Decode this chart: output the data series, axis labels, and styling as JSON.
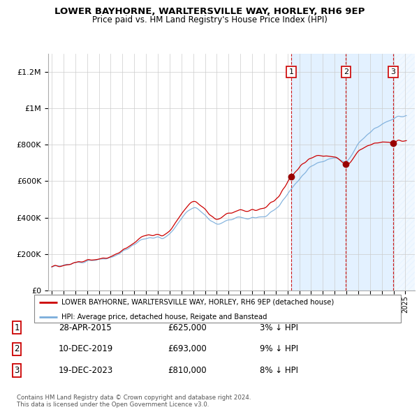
{
  "title": "LOWER BAYHORNE, WARLTERSVILLE WAY, HORLEY, RH6 9EP",
  "subtitle": "Price paid vs. HM Land Registry's House Price Index (HPI)",
  "xlim": [
    1994.7,
    2025.8
  ],
  "ylim": [
    0,
    1300000
  ],
  "yticks": [
    0,
    200000,
    400000,
    600000,
    800000,
    1000000,
    1200000
  ],
  "ytick_labels": [
    "£0",
    "£200K",
    "£400K",
    "£600K",
    "£800K",
    "£1M",
    "£1.2M"
  ],
  "xticks": [
    1995,
    1996,
    1997,
    1998,
    1999,
    2000,
    2001,
    2002,
    2003,
    2004,
    2005,
    2006,
    2007,
    2008,
    2009,
    2010,
    2011,
    2012,
    2013,
    2014,
    2015,
    2016,
    2017,
    2018,
    2019,
    2020,
    2021,
    2022,
    2023,
    2024,
    2025
  ],
  "hpi_color": "#7aaddb",
  "price_color": "#cc0000",
  "sale1_x": 2015.32,
  "sale1_y": 625000,
  "sale2_x": 2019.95,
  "sale2_y": 693000,
  "sale3_x": 2023.97,
  "sale3_y": 810000,
  "legend_label_red": "LOWER BAYHORNE, WARLTERSVILLE WAY, HORLEY, RH6 9EP (detached house)",
  "legend_label_blue": "HPI: Average price, detached house, Reigate and Banstead",
  "table_rows": [
    {
      "num": "1",
      "date": "28-APR-2015",
      "price": "£625,000",
      "hpi": "3% ↓ HPI"
    },
    {
      "num": "2",
      "date": "10-DEC-2019",
      "price": "£693,000",
      "hpi": "9% ↓ HPI"
    },
    {
      "num": "3",
      "date": "19-DEC-2023",
      "price": "£810,000",
      "hpi": "8% ↓ HPI"
    }
  ],
  "footer": "Contains HM Land Registry data © Crown copyright and database right 2024.\nThis data is licensed under the Open Government Licence v3.0.",
  "bg_color": "#ffffff",
  "grid_color": "#cccccc",
  "shade_color": "#ddeeff",
  "hatch_color": "#aaccdd"
}
